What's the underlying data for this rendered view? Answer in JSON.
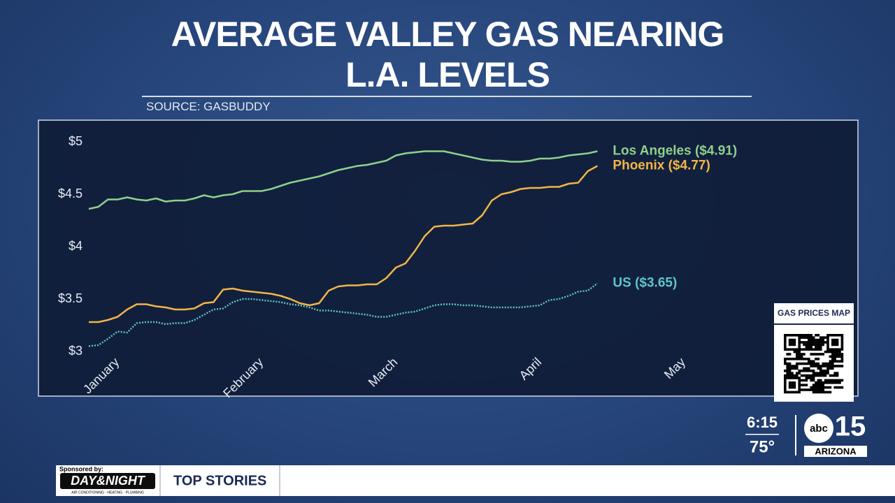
{
  "chart_data": {
    "type": "line",
    "title": "AVERAGE VALLEY GAS NEARING L.A. LEVELS",
    "source": "SOURCE: GASBUDDY",
    "categories": [
      null,
      null,
      null,
      "January",
      null,
      null,
      null,
      null,
      null,
      null,
      null,
      null,
      null,
      null,
      null,
      null,
      null,
      null,
      "February",
      null,
      null,
      null,
      null,
      null,
      null,
      null,
      null,
      null,
      null,
      null,
      null,
      null,
      "March",
      null,
      null,
      null,
      null,
      null,
      null,
      null,
      null,
      null,
      null,
      null,
      null,
      null,
      null,
      "April",
      null,
      null,
      null,
      null,
      null,
      null,
      null,
      null,
      null,
      null,
      null,
      null,
      null,
      null,
      "May",
      null,
      null,
      null,
      null,
      null,
      null,
      null,
      null,
      null,
      null,
      null,
      null,
      null,
      null,
      null,
      null,
      null,
      null
    ],
    "series": [
      {
        "name": "Los Angeles ($4.91)",
        "color": "#8fd08c",
        "dash": false,
        "values": [
          4.36,
          4.38,
          4.45,
          4.45,
          4.47,
          4.45,
          4.44,
          4.46,
          4.43,
          4.44,
          4.44,
          4.46,
          4.49,
          4.47,
          4.49,
          4.5,
          4.53,
          4.53,
          4.53,
          4.55,
          4.58,
          4.61,
          4.63,
          4.65,
          4.67,
          4.7,
          4.73,
          4.75,
          4.77,
          4.78,
          4.8,
          4.82,
          4.87,
          4.89,
          4.9,
          4.91,
          4.91,
          4.91,
          4.89,
          4.87,
          4.85,
          4.83,
          4.82,
          4.82,
          4.81,
          4.81,
          4.82,
          4.84,
          4.84,
          4.85,
          4.87,
          4.88,
          4.89,
          4.91,
          null,
          null,
          null,
          null,
          null,
          null,
          null,
          null,
          null,
          null,
          null,
          null,
          null,
          null,
          null,
          null,
          null,
          null,
          null,
          null,
          null,
          null,
          null,
          null,
          null,
          null,
          null
        ]
      },
      {
        "name": "Phoenix ($4.77)",
        "color": "#f2b547",
        "dash": false,
        "values": [
          3.28,
          3.28,
          3.3,
          3.33,
          3.4,
          3.45,
          3.45,
          3.43,
          3.42,
          3.4,
          3.4,
          3.41,
          3.46,
          3.47,
          3.59,
          3.6,
          3.58,
          3.57,
          3.56,
          3.55,
          3.53,
          3.5,
          3.46,
          3.44,
          3.46,
          3.58,
          3.62,
          3.63,
          3.63,
          3.64,
          3.64,
          3.7,
          3.8,
          3.84,
          3.96,
          4.1,
          4.19,
          4.2,
          4.2,
          4.21,
          4.22,
          4.3,
          4.44,
          4.5,
          4.52,
          4.55,
          4.56,
          4.56,
          4.57,
          4.57,
          4.6,
          4.61,
          4.72,
          4.77,
          null,
          null,
          null,
          null,
          null,
          null,
          null,
          null,
          null,
          null,
          null,
          null,
          null,
          null,
          null,
          null,
          null,
          null,
          null,
          null,
          null,
          null,
          null,
          null,
          null,
          null,
          null
        ]
      },
      {
        "name": "US ($3.65)",
        "color": "#5fc4c9",
        "dash": true,
        "values": [
          3.05,
          3.06,
          3.12,
          3.19,
          3.18,
          3.27,
          3.28,
          3.28,
          3.26,
          3.27,
          3.27,
          3.3,
          3.35,
          3.4,
          3.41,
          3.47,
          3.5,
          3.5,
          3.49,
          3.48,
          3.47,
          3.45,
          3.44,
          3.42,
          3.39,
          3.39,
          3.38,
          3.37,
          3.36,
          3.35,
          3.33,
          3.33,
          3.35,
          3.37,
          3.38,
          3.41,
          3.44,
          3.45,
          3.45,
          3.44,
          3.44,
          3.43,
          3.42,
          3.42,
          3.42,
          3.42,
          3.43,
          3.44,
          3.49,
          3.5,
          3.53,
          3.57,
          3.58,
          3.65,
          null,
          null,
          null,
          null,
          null,
          null,
          null,
          null,
          null,
          null,
          null,
          null,
          null,
          null,
          null,
          null,
          null,
          null,
          null,
          null,
          null,
          null,
          null,
          null,
          null,
          null,
          null
        ]
      }
    ],
    "ylim": [
      3,
      5
    ],
    "yticks": [
      {
        "value": 3,
        "label": "$3"
      },
      {
        "value": 3.5,
        "label": "$3.5"
      },
      {
        "value": 4,
        "label": "$4"
      },
      {
        "value": 4.5,
        "label": "$4.5"
      },
      {
        "value": 5,
        "label": "$5"
      }
    ],
    "grid": false
  },
  "overlay": {
    "qr_title": "GAS PRICES MAP",
    "time": "6:15",
    "temperature": "75°",
    "station_network": "abc",
    "station_number": "15",
    "station_region": "ARIZONA",
    "sponsor_caption": "Sponsored by:",
    "sponsor_name": "DAY&NIGHT",
    "sponsor_tagline": "AIR CONDITIONING · HEATING · PLUMBING",
    "ticker_section": "TOP STORIES"
  }
}
